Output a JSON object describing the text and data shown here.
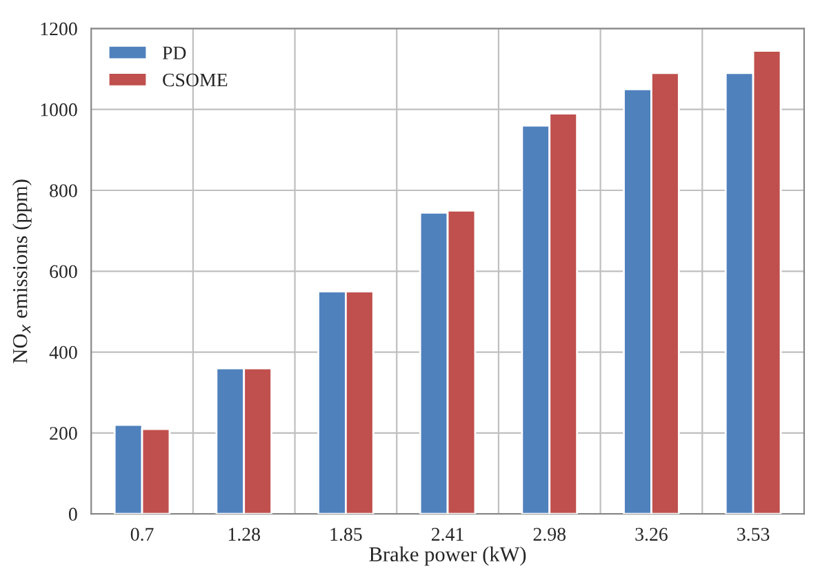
{
  "chart_data": {
    "type": "bar",
    "xlabel": "Brake power (kW)",
    "ylabel": "NO$_{x}$ emissions (ppm)",
    "categories": [
      "0.7",
      "1.28",
      "1.85",
      "2.41",
      "2.98",
      "3.26",
      "3.53"
    ],
    "series": [
      {
        "name": "PD",
        "color": "#4f81bd",
        "values": [
          220,
          360,
          550,
          745,
          960,
          1050,
          1090
        ]
      },
      {
        "name": "CSOME",
        "color": "#c0504d",
        "values": [
          210,
          360,
          550,
          750,
          990,
          1090,
          1145
        ]
      }
    ],
    "ylim": [
      0,
      1200
    ],
    "yticks": [
      0,
      200,
      400,
      600,
      800,
      1000,
      1200
    ],
    "grid": true,
    "legend": "top left"
  }
}
